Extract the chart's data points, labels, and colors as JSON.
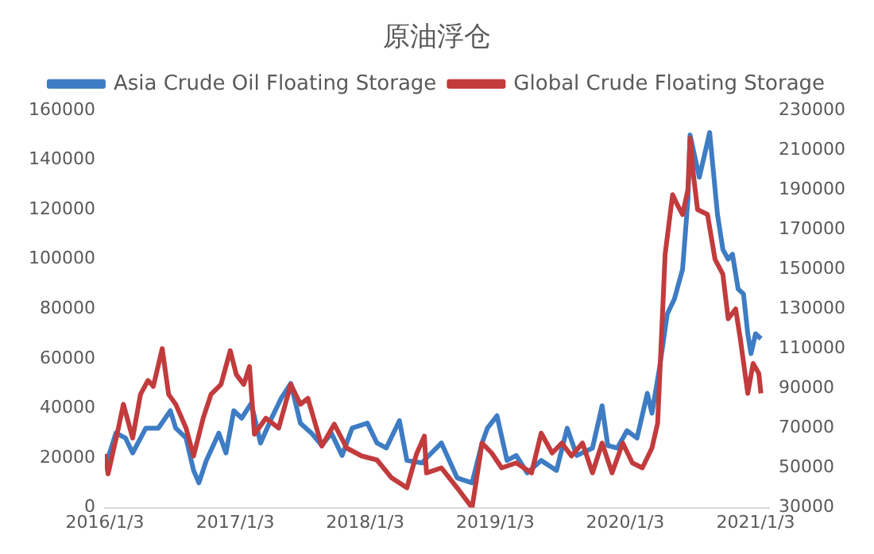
{
  "chart_data": {
    "type": "line",
    "title": "原油浮仓",
    "legend": "top",
    "grid": false,
    "marker": "none",
    "line_style": "solid",
    "xlim": [
      "2016-01-03",
      "2021-02-10"
    ],
    "xticks": [
      {
        "value": "2016-01-03",
        "label": "2016/1/3"
      },
      {
        "value": "2017-01-03",
        "label": "2017/1/3"
      },
      {
        "value": "2018-01-03",
        "label": "2018/1/3"
      },
      {
        "value": "2019-01-03",
        "label": "2019/1/3"
      },
      {
        "value": "2020-01-03",
        "label": "2020/1/3"
      },
      {
        "value": "2021-01-03",
        "label": "2021/1/3"
      }
    ],
    "ylim": [
      0,
      160000
    ],
    "yticks": [
      0,
      20000,
      40000,
      60000,
      80000,
      100000,
      120000,
      140000,
      160000
    ],
    "y2lim": [
      30000,
      230000
    ],
    "y2ticks": [
      30000,
      50000,
      70000,
      90000,
      110000,
      130000,
      150000,
      170000,
      190000,
      210000,
      230000
    ],
    "series": [
      {
        "name": "Asia Crude Oil Floating Storage",
        "color": "#3e7cc4",
        "axis": "y",
        "x": [
          "2016-01-03",
          "2016-02-03",
          "2016-03-01",
          "2016-03-21",
          "2016-04-27",
          "2016-06-01",
          "2016-07-05",
          "2016-07-20",
          "2016-08-18",
          "2016-09-08",
          "2016-09-23",
          "2016-10-14",
          "2016-11-18",
          "2016-12-08",
          "2016-12-30",
          "2017-01-21",
          "2017-02-17",
          "2017-03-15",
          "2017-04-15",
          "2017-05-12",
          "2017-06-08",
          "2017-07-05",
          "2017-08-05",
          "2017-09-03",
          "2017-09-30",
          "2017-10-30",
          "2017-11-27",
          "2018-01-09",
          "2018-02-05",
          "2018-03-03",
          "2018-04-09",
          "2018-04-30",
          "2018-06-12",
          "2018-06-24",
          "2018-08-05",
          "2018-09-18",
          "2018-10-30",
          "2018-11-27",
          "2018-12-12",
          "2019-01-08",
          "2019-02-05",
          "2019-03-03",
          "2019-04-03",
          "2019-05-12",
          "2019-06-24",
          "2019-07-24",
          "2019-08-20",
          "2019-10-03",
          "2019-10-30",
          "2019-11-15",
          "2019-12-12",
          "2020-01-08",
          "2020-02-05",
          "2020-03-05",
          "2020-03-18",
          "2020-04-08",
          "2020-04-30",
          "2020-05-20",
          "2020-06-12",
          "2020-06-27",
          "2020-07-03",
          "2020-07-29",
          "2020-08-27",
          "2020-09-18",
          "2020-10-03",
          "2020-10-18",
          "2020-10-30",
          "2020-11-15",
          "2020-11-30",
          "2020-12-12",
          "2020-12-21",
          "2021-01-03",
          "2021-01-18"
        ],
        "values": [
          16000,
          30000,
          28000,
          22000,
          32000,
          32000,
          39000,
          32000,
          28000,
          15000,
          10000,
          19000,
          30000,
          22000,
          39000,
          36000,
          42000,
          26000,
          36000,
          44000,
          50000,
          34000,
          30000,
          25000,
          30000,
          21000,
          32000,
          34000,
          26000,
          24000,
          35000,
          19000,
          18000,
          20000,
          26000,
          12000,
          10000,
          26000,
          32000,
          37000,
          19000,
          21000,
          14000,
          19000,
          15000,
          32000,
          21000,
          24000,
          41000,
          25000,
          24000,
          31000,
          28000,
          46000,
          38000,
          56000,
          78000,
          84000,
          96000,
          124000,
          150000,
          133000,
          151000,
          118000,
          104000,
          100000,
          102000,
          88000,
          86000,
          70000,
          62000,
          70000,
          68000
        ]
      },
      {
        "name": "Global Crude Floating Storage",
        "color": "#c23b3d",
        "axis": "y2",
        "x": [
          "2016-01-03",
          "2016-01-12",
          "2016-02-10",
          "2016-02-24",
          "2016-03-21",
          "2016-04-12",
          "2016-05-03",
          "2016-05-18",
          "2016-06-12",
          "2016-06-30",
          "2016-07-20",
          "2016-08-18",
          "2016-09-08",
          "2016-10-05",
          "2016-10-27",
          "2016-11-24",
          "2016-12-20",
          "2017-01-06",
          "2017-01-27",
          "2017-02-12",
          "2017-02-26",
          "2017-03-30",
          "2017-05-05",
          "2017-06-08",
          "2017-07-05",
          "2017-07-26",
          "2017-09-03",
          "2017-10-08",
          "2017-11-12",
          "2017-12-24",
          "2018-02-05",
          "2018-03-18",
          "2018-04-30",
          "2018-05-27",
          "2018-06-18",
          "2018-06-24",
          "2018-08-05",
          "2018-09-18",
          "2018-10-30",
          "2018-11-27",
          "2018-12-24",
          "2019-01-21",
          "2019-03-03",
          "2019-04-15",
          "2019-05-12",
          "2019-06-12",
          "2019-07-09",
          "2019-08-05",
          "2019-09-05",
          "2019-10-03",
          "2019-10-30",
          "2019-11-27",
          "2019-12-27",
          "2020-01-23",
          "2020-02-20",
          "2020-03-18",
          "2020-04-03",
          "2020-04-24",
          "2020-05-15",
          "2020-05-28",
          "2020-06-12",
          "2020-06-27",
          "2020-07-03",
          "2020-07-12",
          "2020-07-24",
          "2020-08-21",
          "2020-09-11",
          "2020-10-03",
          "2020-10-18",
          "2020-11-08",
          "2020-11-21",
          "2020-12-12",
          "2020-12-27",
          "2021-01-12",
          "2021-01-18"
        ],
        "values": [
          57000,
          47000,
          70000,
          82000,
          65000,
          87000,
          94000,
          91000,
          110000,
          87000,
          82000,
          70000,
          56000,
          75000,
          87000,
          92000,
          109000,
          97000,
          92000,
          101000,
          67000,
          75000,
          70000,
          92000,
          82000,
          85000,
          61000,
          72000,
          60000,
          56000,
          54000,
          45000,
          40000,
          57000,
          66000,
          47500,
          50000,
          40000,
          30000,
          62500,
          57500,
          50000,
          52500,
          47500,
          67500,
          57500,
          62500,
          56000,
          62500,
          47500,
          62500,
          47500,
          62500,
          52500,
          50000,
          60000,
          72500,
          157500,
          187500,
          182500,
          177500,
          190000,
          216000,
          198000,
          180000,
          177500,
          155000,
          147500,
          125000,
          130000,
          115000,
          87500,
          102500,
          97500,
          87500
        ]
      }
    ]
  }
}
